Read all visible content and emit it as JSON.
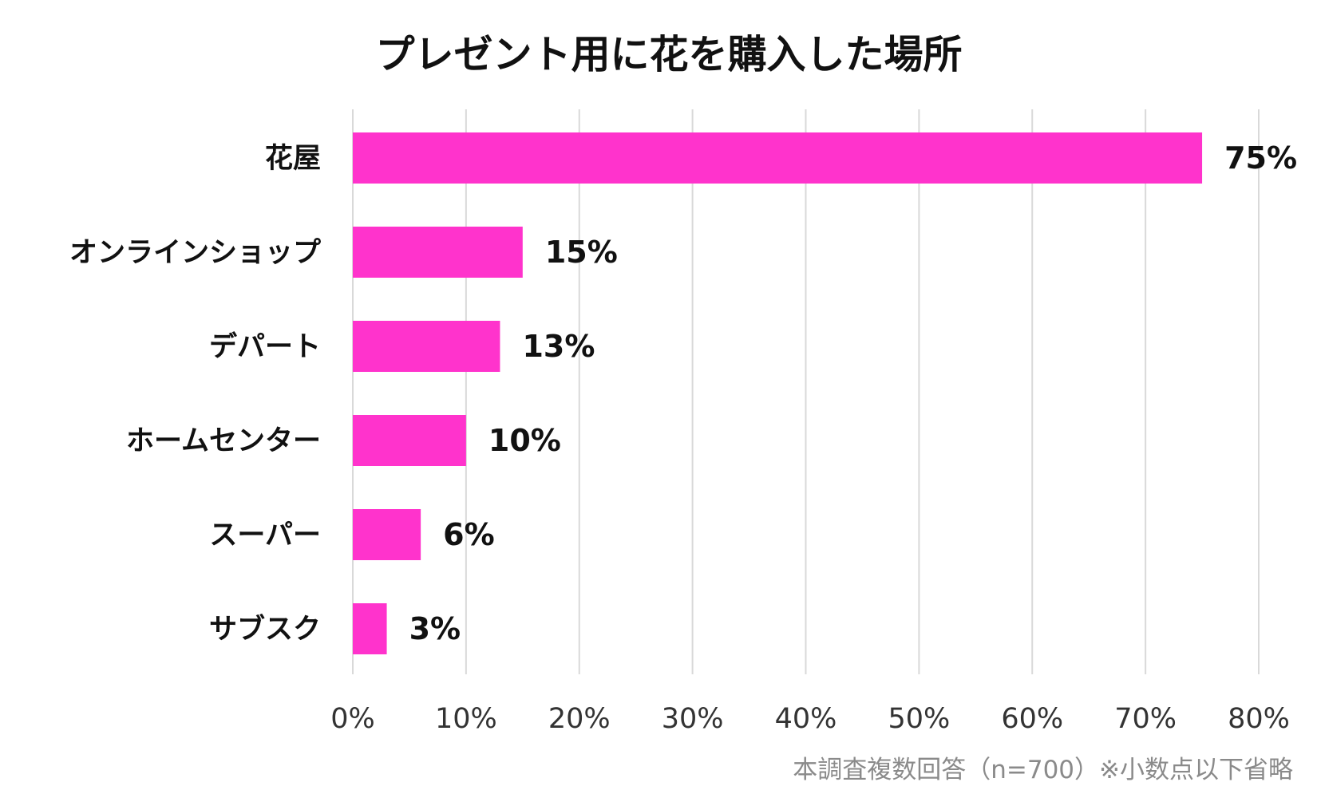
{
  "chart_data": {
    "type": "bar",
    "orientation": "horizontal",
    "title": "プレゼント用に花を購入した場所",
    "categories": [
      "花屋",
      "オンラインショップ",
      "デパート",
      "ホームセンター",
      "スーパー",
      "サブスク"
    ],
    "values": [
      75,
      15,
      13,
      10,
      6,
      3
    ],
    "value_labels": [
      "75%",
      "15%",
      "13%",
      "10%",
      "6%",
      "3%"
    ],
    "xlabel": "",
    "ylabel": "",
    "xlim": [
      0,
      80
    ],
    "x_ticks": [
      0,
      10,
      20,
      30,
      40,
      50,
      60,
      70,
      80
    ],
    "x_tick_labels": [
      "0%",
      "10%",
      "20%",
      "30%",
      "40%",
      "50%",
      "60%",
      "70%",
      "80%"
    ],
    "grid": true,
    "legend": "none",
    "bar_color": "#ff33cc",
    "footnote": "本調査複数回答（n=700）※小数点以下省略"
  }
}
